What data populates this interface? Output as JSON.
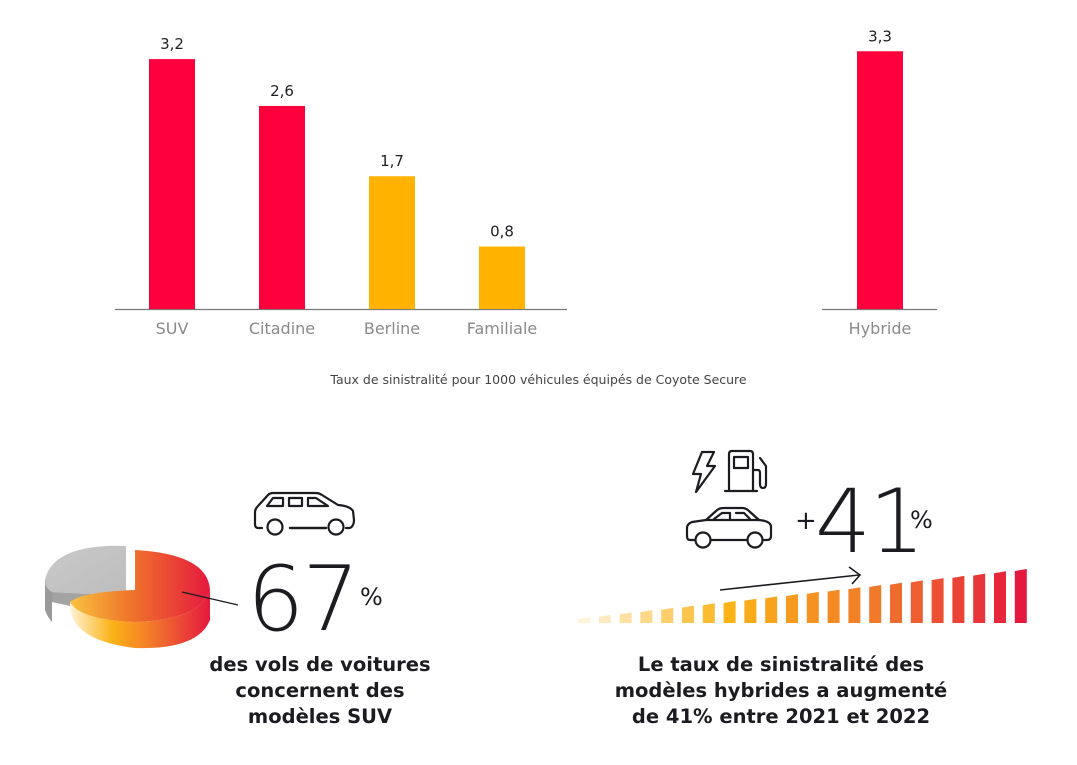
{
  "chart_data": [
    {
      "type": "bar",
      "title": "",
      "categories": [
        "SUV",
        "Citadine",
        "Berline",
        "Familiale"
      ],
      "values": [
        3.2,
        2.6,
        1.7,
        0.8
      ],
      "value_labels": [
        "3,2",
        "2,6",
        "1,7",
        "0,8"
      ],
      "colors": [
        "#ff003c",
        "#ff003c",
        "#ffb300",
        "#ffb300"
      ],
      "xlabel": "",
      "ylabel": "",
      "ylim": [
        0,
        3.3
      ],
      "grid": false,
      "axis_visible": false
    },
    {
      "type": "bar",
      "title": "",
      "categories": [
        "Hybride"
      ],
      "values": [
        3.3
      ],
      "value_labels": [
        "3,3"
      ],
      "colors": [
        "#ff003c"
      ],
      "xlabel": "",
      "ylabel": "",
      "ylim": [
        0,
        3.3
      ],
      "grid": false,
      "axis_visible": false
    }
  ],
  "caption": "Taux de sinistralité pour 1000 véhicules équipés de Coyote Secure",
  "stat_suv": {
    "icon": "suv-car-icon",
    "number": "67",
    "unit": "%",
    "pie_share": 0.67,
    "pie_colors": {
      "share_start": "#fde7b8",
      "share_mid": "#fbb316",
      "share_end": "#e5193f",
      "rest": "#c6c6c6"
    },
    "lines": [
      "des vols de voitures",
      "concernent des",
      "modèles SUV"
    ]
  },
  "stat_hybrid": {
    "icons": [
      "lightning-icon",
      "fuel-pump-icon",
      "sedan-car-icon",
      "trend-arrow-icon"
    ],
    "prefix": "+",
    "number": "41",
    "unit": "%",
    "growth_bars": 22,
    "gradient_colors": [
      "#fff3dc",
      "#fbb316",
      "#f07a2a",
      "#e5193f"
    ],
    "lines": [
      "Le taux de sinistralité des",
      "modèles hybrides a augmenté",
      "de 41% entre 2021 et 2022"
    ]
  }
}
